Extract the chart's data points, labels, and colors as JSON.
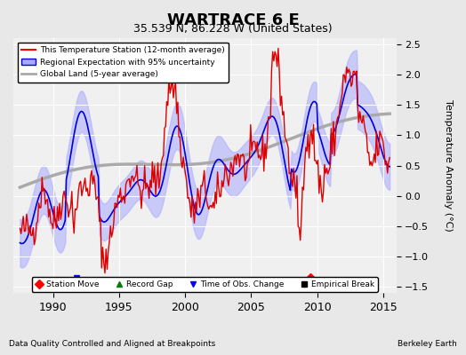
{
  "title": "WARTRACE 6 E",
  "subtitle": "35.539 N, 86.228 W (United States)",
  "ylabel": "Temperature Anomaly (°C)",
  "xlabel_left": "Data Quality Controlled and Aligned at Breakpoints",
  "xlabel_right": "Berkeley Earth",
  "ylim": [
    -1.6,
    2.6
  ],
  "xlim": [
    1987.0,
    2016.0
  ],
  "yticks": [
    -1.5,
    -1.0,
    -0.5,
    0.0,
    0.5,
    1.0,
    1.5,
    2.0,
    2.5
  ],
  "xticks": [
    1990,
    1995,
    2000,
    2005,
    2010,
    2015
  ],
  "bg_color": "#e8e8e8",
  "plot_bg_color": "#f0f0f0",
  "grid_color": "#ffffff",
  "station_move_x": 2009.5,
  "station_move_y": -1.35,
  "obs_change_x": 1992.0,
  "obs_change_y": -1.35
}
